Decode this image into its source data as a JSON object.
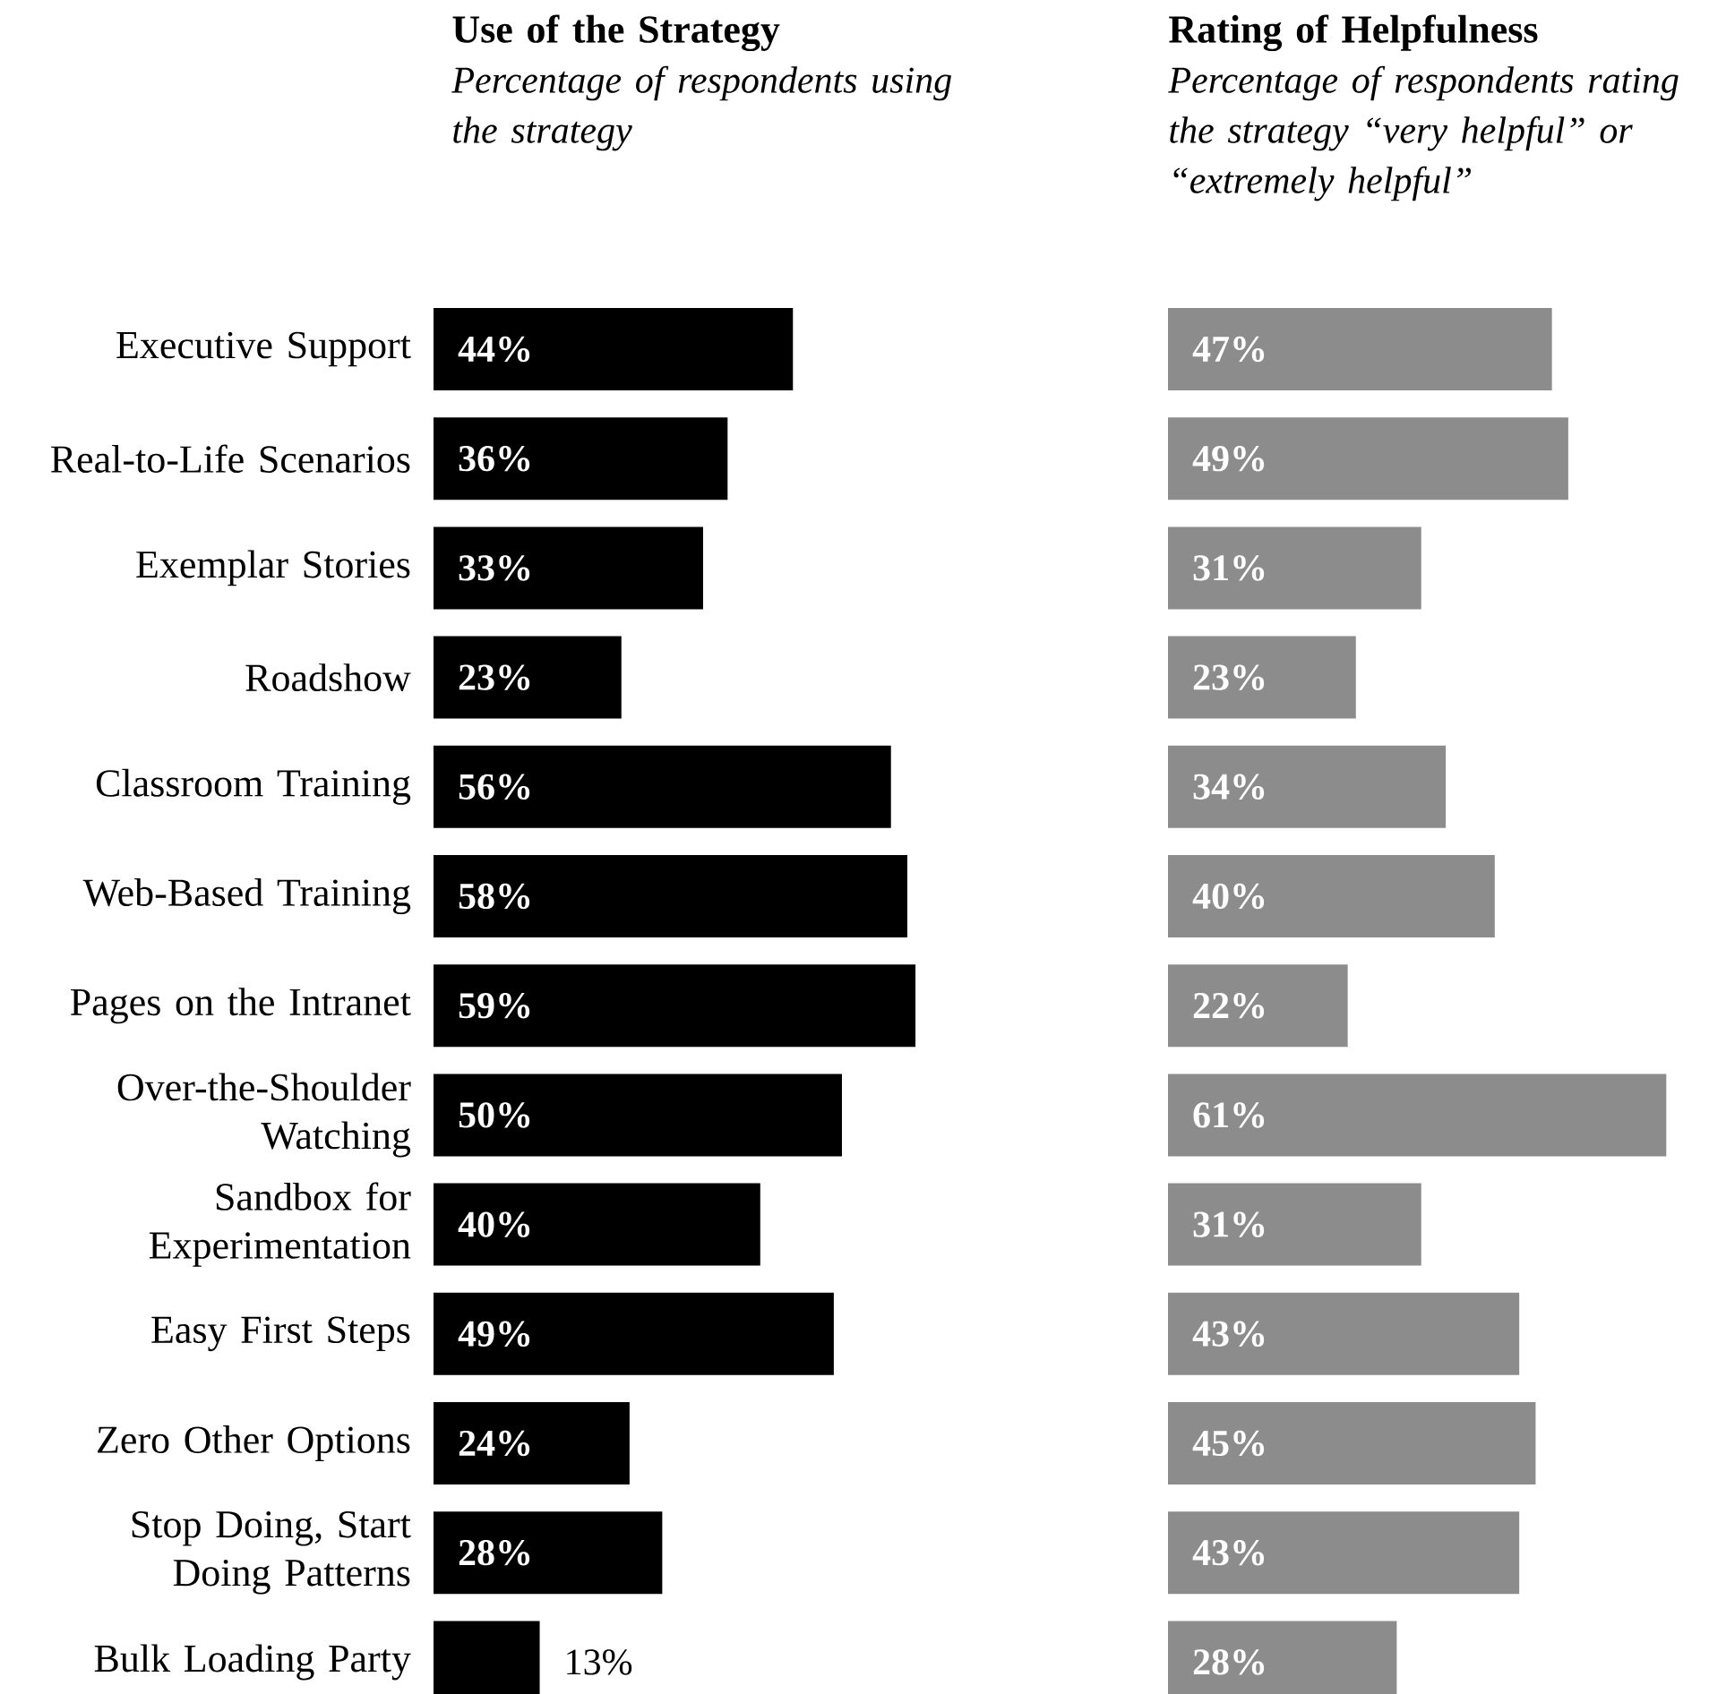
{
  "chart_data": [
    {
      "type": "bar",
      "orientation": "horizontal",
      "title": "Use of the Strategy",
      "subtitle": "Percentage of respondents using the strategy",
      "categories": [
        "Executive Support",
        "Real-to-Life Scenarios",
        "Exemplar Stories",
        "Roadshow",
        "Classroom Training",
        "Web-Based Training",
        "Pages on the Intranet",
        "Over-the-Shoulder Watching",
        "Sandbox for Experimentation",
        "Easy First Steps",
        "Zero Other Options",
        "Stop Doing, Start Doing Patterns",
        "Bulk Loading Party"
      ],
      "values": [
        44,
        36,
        33,
        23,
        56,
        58,
        59,
        50,
        40,
        49,
        24,
        28,
        13
      ],
      "value_labels": [
        "44%",
        "36%",
        "33%",
        "23%",
        "56%",
        "58%",
        "59%",
        "50%",
        "40%",
        "49%",
        "24%",
        "28%",
        "13%"
      ],
      "color": "#000000",
      "tick_labels": "y"
    },
    {
      "type": "bar",
      "orientation": "horizontal",
      "title": "Rating of Helpfulness",
      "subtitle": "Percentage of respondents rating the strategy “very helpful” or “extremely helpful”",
      "categories": [
        null,
        null,
        null,
        null,
        null,
        null,
        null,
        null,
        null,
        null,
        null,
        null,
        null
      ],
      "values": [
        47,
        49,
        31,
        23,
        34,
        40,
        22,
        61,
        31,
        43,
        45,
        43,
        28
      ],
      "value_labels": [
        "47%",
        "49%",
        "31%",
        "23%",
        "34%",
        "40%",
        "22%",
        "61%",
        "31%",
        "43%",
        "45%",
        "43%",
        "28%"
      ],
      "color": "#8c8c8c"
    }
  ]
}
